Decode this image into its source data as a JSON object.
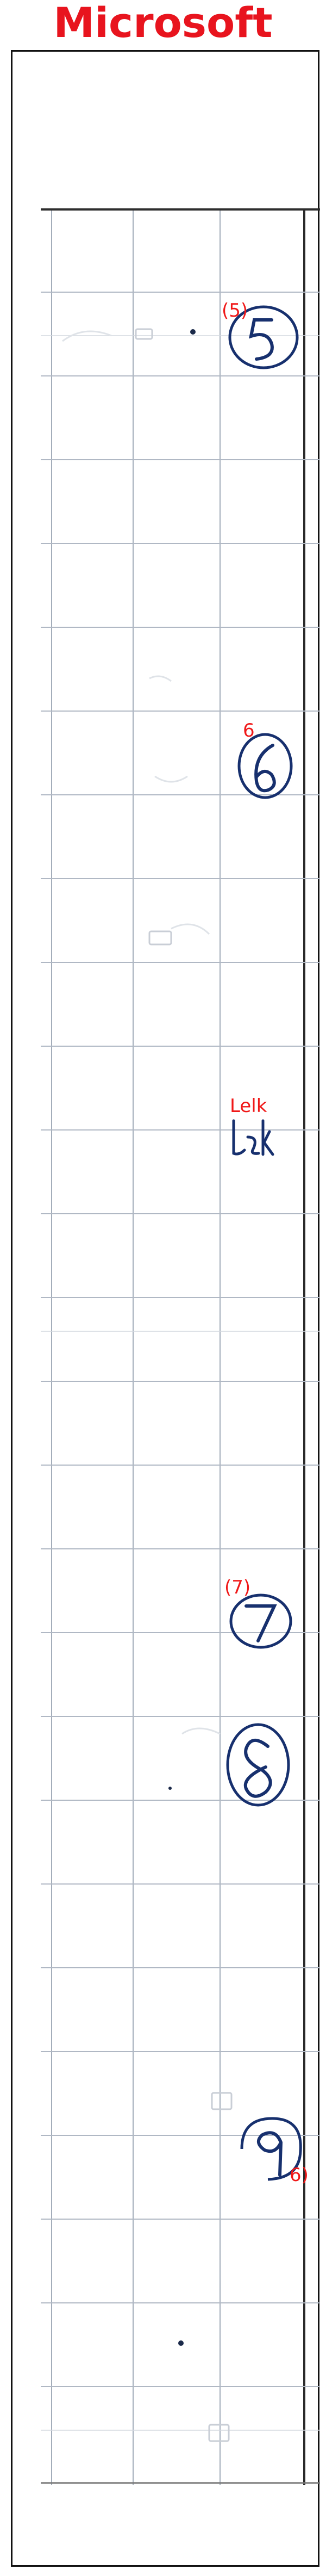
{
  "header": {
    "title": "Microsoft"
  },
  "annotations": [
    {
      "label": "(5)"
    },
    {
      "label": "6"
    },
    {
      "label": "Lelk"
    },
    {
      "label": "(7)"
    },
    {
      "label": "6)"
    }
  ],
  "colors": {
    "title": "#e8141e",
    "annotation": "#f01818",
    "ink": "#17306e",
    "grid": "#9aa4b2"
  },
  "icons": [
    "circled-5-mark",
    "circled-6-mark",
    "handwritten-word-mark",
    "circled-7-mark",
    "circled-8-mark",
    "circled-9-mark"
  ]
}
